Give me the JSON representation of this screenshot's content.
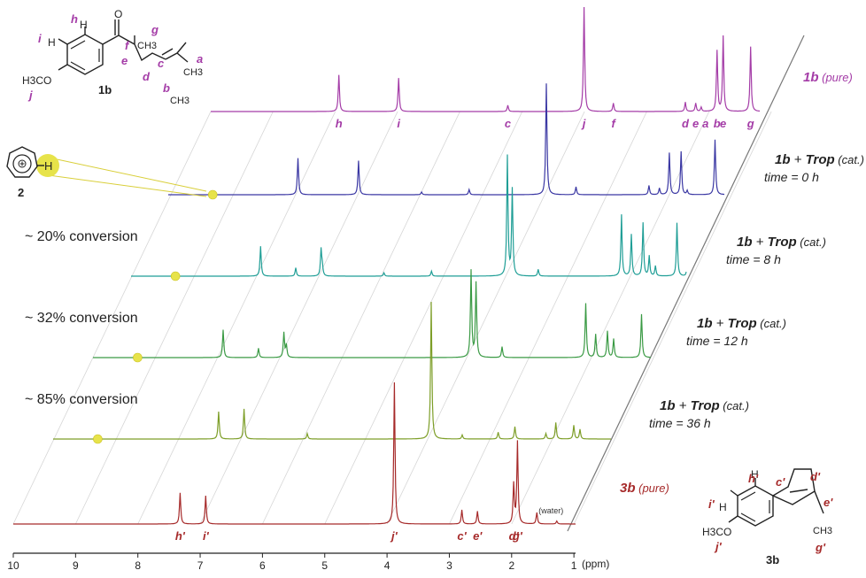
{
  "chart_data": {
    "type": "line",
    "title": "",
    "xlabel": "(ppm)",
    "x_ticks": [
      "10",
      "9",
      "8",
      "7",
      "6",
      "5",
      "4",
      "3",
      "2",
      "1"
    ],
    "xlim": [
      10,
      1
    ],
    "x_reversed": true,
    "grid": "diagonal",
    "series": [
      {
        "id": "s1b",
        "color": "#a43ca7",
        "label_main": "1b",
        "label_rest": "(pure)",
        "time_label": "",
        "conversion": "",
        "peaks": [
          {
            "ppm": 7.9,
            "h": 0.35
          },
          {
            "ppm": 6.92,
            "h": 0.32
          },
          {
            "ppm": 5.13,
            "h": 0.06
          },
          {
            "ppm": 3.88,
            "h": 1.0
          },
          {
            "ppm": 3.4,
            "h": 0.08
          },
          {
            "ppm": 2.22,
            "h": 0.09
          },
          {
            "ppm": 2.05,
            "h": 0.08
          },
          {
            "ppm": 1.96,
            "h": 0.04
          },
          {
            "ppm": 1.7,
            "h": 0.58
          },
          {
            "ppm": 1.6,
            "h": 0.72
          },
          {
            "ppm": 1.15,
            "h": 0.62
          }
        ],
        "peak_labels": [
          {
            "text": "h",
            "ppm": 7.9
          },
          {
            "text": "i",
            "ppm": 6.92
          },
          {
            "text": "c",
            "ppm": 5.13
          },
          {
            "text": "j",
            "ppm": 3.88
          },
          {
            "text": "f",
            "ppm": 3.4
          },
          {
            "text": "d",
            "ppm": 2.22
          },
          {
            "text": "e",
            "ppm": 2.05
          },
          {
            "text": "a",
            "ppm": 1.89
          },
          {
            "text": "b",
            "ppm": 1.7
          },
          {
            "text": "e",
            "ppm": 1.6
          },
          {
            "text": "g",
            "ppm": 1.15
          }
        ]
      },
      {
        "id": "s0h",
        "color": "#3a37a3",
        "label_main": "1b",
        "label_rest": "(cat.)",
        "label_trop": "Trop",
        "time_label": "time = 0 h",
        "conversion": "",
        "tropylium_ppm": 9.28,
        "peaks": [
          {
            "ppm": 7.9,
            "h": 0.28
          },
          {
            "ppm": 6.92,
            "h": 0.26
          },
          {
            "ppm": 5.9,
            "h": 0.02
          },
          {
            "ppm": 5.13,
            "h": 0.04
          },
          {
            "ppm": 3.88,
            "h": 0.85
          },
          {
            "ppm": 3.4,
            "h": 0.06
          },
          {
            "ppm": 2.22,
            "h": 0.07
          },
          {
            "ppm": 2.05,
            "h": 0.05
          },
          {
            "ppm": 1.89,
            "h": 0.32
          },
          {
            "ppm": 1.7,
            "h": 0.33
          },
          {
            "ppm": 1.6,
            "h": 0.03
          },
          {
            "ppm": 1.15,
            "h": 0.42
          }
        ]
      },
      {
        "id": "s8h",
        "color": "#1f9e96",
        "label_main": "1b",
        "label_rest": "(cat.)",
        "label_trop": "Trop",
        "time_label": "time = 8 h",
        "conversion": "~ 20% conversion",
        "tropylium_ppm": 9.28,
        "peaks": [
          {
            "ppm": 7.9,
            "h": 0.18
          },
          {
            "ppm": 7.33,
            "h": 0.05
          },
          {
            "ppm": 6.92,
            "h": 0.16
          },
          {
            "ppm": 6.9,
            "h": 0.05
          },
          {
            "ppm": 5.9,
            "h": 0.02
          },
          {
            "ppm": 5.13,
            "h": 0.03
          },
          {
            "ppm": 3.9,
            "h": 0.72
          },
          {
            "ppm": 3.82,
            "h": 0.52
          },
          {
            "ppm": 3.4,
            "h": 0.04
          },
          {
            "ppm": 2.05,
            "h": 0.37
          },
          {
            "ppm": 1.89,
            "h": 0.25
          },
          {
            "ppm": 1.7,
            "h": 0.32
          },
          {
            "ppm": 1.6,
            "h": 0.12
          },
          {
            "ppm": 1.5,
            "h": 0.06
          },
          {
            "ppm": 1.15,
            "h": 0.32
          },
          {
            "ppm": 0.99,
            "h": 0.04
          }
        ]
      },
      {
        "id": "s12h",
        "color": "#3a9a44",
        "label_main": "1b",
        "label_rest": "(cat.)",
        "label_trop": "Trop",
        "time_label": "time = 12 h",
        "conversion": "~ 32% conversion",
        "tropylium_ppm": 9.28,
        "peaks": [
          {
            "ppm": 7.9,
            "h": 0.18
          },
          {
            "ppm": 7.33,
            "h": 0.06
          },
          {
            "ppm": 6.92,
            "h": 0.16
          },
          {
            "ppm": 6.88,
            "h": 0.08
          },
          {
            "ppm": 3.9,
            "h": 0.56
          },
          {
            "ppm": 3.82,
            "h": 0.48
          },
          {
            "ppm": 3.4,
            "h": 0.07
          },
          {
            "ppm": 2.05,
            "h": 0.35
          },
          {
            "ppm": 1.89,
            "h": 0.15
          },
          {
            "ppm": 1.7,
            "h": 0.17
          },
          {
            "ppm": 1.6,
            "h": 0.12
          },
          {
            "ppm": 1.15,
            "h": 0.28
          }
        ]
      },
      {
        "id": "s36h",
        "color": "#7d9e28",
        "label_main": "1b",
        "label_rest": "(cat.)",
        "label_trop": "Trop",
        "time_label": "time = 36 h",
        "conversion": "~ 85% conversion",
        "tropylium_ppm": 9.28,
        "peaks": [
          {
            "ppm": 7.33,
            "h": 0.2
          },
          {
            "ppm": 6.92,
            "h": 0.22
          },
          {
            "ppm": 5.9,
            "h": 0.04
          },
          {
            "ppm": 3.9,
            "h": 1.0
          },
          {
            "ppm": 3.4,
            "h": 0.03
          },
          {
            "ppm": 2.82,
            "h": 0.05
          },
          {
            "ppm": 2.55,
            "h": 0.09
          },
          {
            "ppm": 2.05,
            "h": 0.04
          },
          {
            "ppm": 1.89,
            "h": 0.12
          },
          {
            "ppm": 1.6,
            "h": 0.1
          },
          {
            "ppm": 1.5,
            "h": 0.07
          }
        ]
      },
      {
        "id": "s3b",
        "color": "#a62a2a",
        "label_main": "3b",
        "label_rest": "(pure)",
        "time_label": "",
        "conversion": "",
        "peaks": [
          {
            "ppm": 7.33,
            "h": 0.22
          },
          {
            "ppm": 6.92,
            "h": 0.2
          },
          {
            "ppm": 3.9,
            "h": 1.0
          },
          {
            "ppm": 2.82,
            "h": 0.1
          },
          {
            "ppm": 2.57,
            "h": 0.09
          },
          {
            "ppm": 1.99,
            "h": 0.28
          },
          {
            "ppm": 1.93,
            "h": 0.58
          },
          {
            "ppm": 1.62,
            "h": 0.08
          },
          {
            "ppm": 1.3,
            "h": 0.02
          }
        ],
        "peak_labels": [
          {
            "text": "h'",
            "ppm": 7.33
          },
          {
            "text": "i'",
            "ppm": 6.92
          },
          {
            "text": "j'",
            "ppm": 3.9
          },
          {
            "text": "c'",
            "ppm": 2.82
          },
          {
            "text": "e'",
            "ppm": 2.57
          },
          {
            "text": "d'",
            "ppm": 1.99
          },
          {
            "text": "g'",
            "ppm": 1.93
          }
        ],
        "annotations": [
          {
            "text": "(water)",
            "ppm": 1.62
          }
        ]
      }
    ]
  },
  "structures": {
    "sm": {
      "name": "1b",
      "atoms": {
        "h": "H",
        "i": "H",
        "ome": "H3CO",
        "me1": "CH3",
        "me2": "CH3",
        "me3": "CH3",
        "o": "O"
      },
      "labels": {
        "a": "a",
        "b": "b",
        "c": "c",
        "d": "d",
        "e": "e",
        "f": "f",
        "g": "g",
        "h": "h",
        "i": "i",
        "j": "j"
      }
    },
    "trop": {
      "name": "2",
      "h": "H"
    },
    "product": {
      "name": "3b",
      "atoms": {
        "h": "H",
        "i": "H",
        "ome": "H3CO",
        "me": "CH3"
      },
      "labels": {
        "c": "c'",
        "d": "d'",
        "e": "e'",
        "g": "g'",
        "h": "h'",
        "i": "i'",
        "j": "j'"
      }
    }
  }
}
